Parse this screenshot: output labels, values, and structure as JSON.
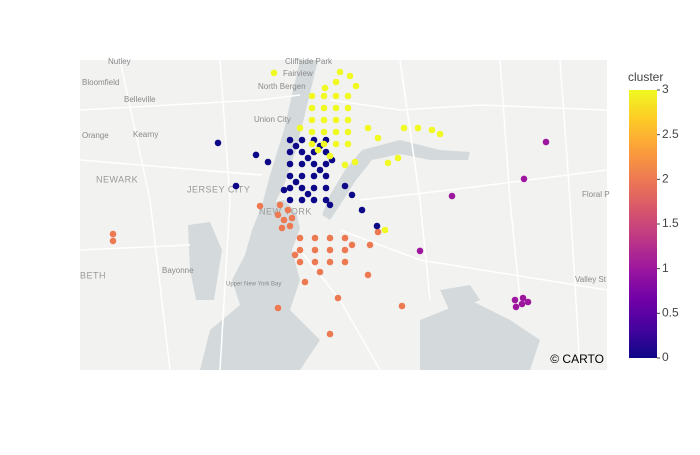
{
  "chart_data": {
    "type": "scatter",
    "xlim": [
      -74.25,
      -73.723
    ],
    "ylim": [
      40.6175,
      40.85
    ],
    "x": [
      -74.05,
      -74.042,
      -74.046,
      -74.038,
      -74.052,
      -74.04,
      -74.048,
      -74.03,
      -74.015,
      -74.0,
      -73.985,
      -74.03,
      -74.015,
      -74.0,
      -73.985,
      -74.03,
      -74.015,
      -74.0,
      -73.985,
      -74.025,
      -74.01,
      -73.978,
      -73.96,
      -73.952,
      -74.07,
      -74.217,
      -74.217,
      -73.992,
      -74.052,
      -73.928,
      -74.0,
      -73.962,
      -74.035,
      -73.784,
      -73.806,
      -73.878,
      -73.91,
      -73.815,
      -73.807,
      -73.802,
      -73.814,
      -73.808,
      -74.112,
      -74.074,
      -74.062,
      -74.094,
      -73.985,
      -73.978,
      -73.968,
      -73.953,
      -74.0,
      -74.04,
      -74.028,
      -74.016,
      -74.004,
      -74.04,
      -74.028,
      -74.016,
      -74.004,
      -74.04,
      -74.028,
      -74.016,
      -74.004,
      -74.04,
      -74.028,
      -74.016,
      -74.004,
      -74.04,
      -74.028,
      -74.016,
      -74.004,
      -74.04,
      -74.028,
      -74.016,
      -74.004,
      -74.034,
      -74.022,
      -74.01,
      -74.034,
      -74.022,
      -74.01,
      -74.046,
      -73.998,
      -74.018,
      -74.006,
      -73.994,
      -73.982,
      -74.018,
      -74.006,
      -73.994,
      -73.982,
      -74.018,
      -74.006,
      -73.994,
      -73.982,
      -74.018,
      -74.006,
      -73.994,
      -73.982,
      -74.018,
      -74.006,
      -73.994,
      -73.982,
      -73.994,
      -73.98,
      -73.99,
      -73.974,
      -74.056,
      -74.005,
      -73.962,
      -73.952,
      -73.942,
      -73.932,
      -73.926,
      -73.912,
      -73.898,
      -73.89,
      -73.975,
      -73.985,
      -73.945,
      -74.012,
      -74.0,
      -74.03
    ],
    "y": [
      40.7413,
      40.7375,
      40.73,
      40.7315,
      40.7338,
      40.7255,
      40.724,
      40.7165,
      40.7165,
      40.7165,
      40.7165,
      40.7075,
      40.7075,
      40.7075,
      40.7075,
      40.6985,
      40.6985,
      40.6985,
      40.6985,
      40.6835,
      40.691,
      40.7113,
      40.7113,
      40.721,
      40.7405,
      40.7195,
      40.7143,
      40.6715,
      40.664,
      40.6655,
      40.6445,
      40.6888,
      40.7038,
      40.7885,
      40.7608,
      40.748,
      40.7068,
      40.67,
      40.6715,
      40.6685,
      40.6648,
      40.667,
      40.7878,
      40.7788,
      40.7735,
      40.7555,
      40.7555,
      40.7488,
      40.7375,
      40.7255,
      40.7413,
      40.79,
      40.79,
      40.79,
      40.79,
      40.781,
      40.781,
      40.781,
      40.781,
      40.772,
      40.772,
      40.772,
      40.772,
      40.763,
      40.763,
      40.763,
      40.763,
      40.754,
      40.754,
      40.754,
      40.754,
      40.745,
      40.745,
      40.745,
      40.745,
      40.7855,
      40.7765,
      40.7675,
      40.7585,
      40.7495,
      40.7855,
      40.7525,
      40.775,
      40.823,
      40.823,
      40.823,
      40.823,
      40.814,
      40.814,
      40.814,
      40.814,
      40.805,
      40.805,
      40.805,
      40.805,
      40.796,
      40.796,
      40.796,
      40.796,
      40.787,
      40.787,
      40.787,
      40.787,
      40.8335,
      40.838,
      40.841,
      40.8305,
      40.8403,
      40.829,
      40.799,
      40.7915,
      40.7728,
      40.7765,
      40.799,
      40.799,
      40.7975,
      40.7945,
      40.7735,
      40.7713,
      40.7225,
      40.7825,
      40.778,
      40.799
    ],
    "color_values": [
      2,
      2,
      2,
      2,
      2,
      2,
      2,
      2,
      2,
      2,
      2,
      2,
      2,
      2,
      2,
      2,
      2,
      2,
      2,
      2,
      2,
      2,
      2,
      2,
      2,
      2,
      2,
      2,
      2,
      2,
      2,
      2,
      2,
      1,
      1,
      1,
      1,
      1,
      1,
      1,
      1,
      1,
      0,
      0,
      0,
      0,
      0,
      0,
      0,
      0,
      0,
      0,
      0,
      0,
      0,
      0,
      0,
      0,
      0,
      0,
      0,
      0,
      0,
      0,
      0,
      0,
      0,
      0,
      0,
      0,
      0,
      0,
      0,
      0,
      0,
      0,
      0,
      0,
      0,
      0,
      0,
      0,
      0,
      3,
      3,
      3,
      3,
      3,
      3,
      3,
      3,
      3,
      3,
      3,
      3,
      3,
      3,
      3,
      3,
      3,
      3,
      3,
      3,
      3,
      3,
      3,
      3,
      3,
      3,
      3,
      3,
      3,
      3,
      3,
      3,
      3,
      3,
      3,
      3,
      3,
      3,
      3,
      3
    ],
    "clim": [
      0,
      3
    ],
    "colorscale": [
      "#0d0887",
      "#46039f",
      "#7201a8",
      "#9c179e",
      "#bd3786",
      "#d8576b",
      "#ed7953",
      "#fb9f3a",
      "#fdca26",
      "#f0f921"
    ],
    "colorbar": {
      "title": "cluster",
      "ticks": [
        0,
        0.5,
        1,
        1.5,
        2,
        2.5,
        3
      ]
    }
  },
  "map": {
    "attribution": "© CARTO",
    "labels": [
      "Nutley",
      "Cliffside Park",
      "Fairview",
      "Bloomfield",
      "North Bergen",
      "Belleville",
      "Union City",
      "Orange",
      "Kearny",
      "NEWARK",
      "JERSEY CITY",
      "NEW YORK",
      "Bayonne",
      "BETH",
      "Upper New York Bay",
      "Floral P",
      "Valley St"
    ]
  }
}
